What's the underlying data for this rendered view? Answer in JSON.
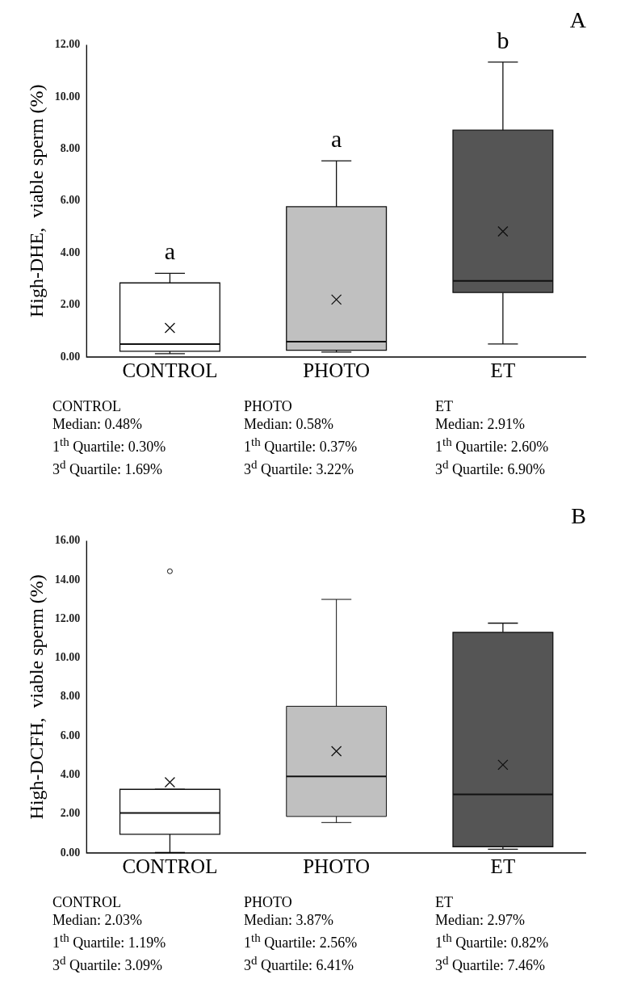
{
  "chart_data": [
    {
      "type": "box",
      "title": "A",
      "ylabel": "High-DHE,  viable sperm (%)",
      "categories": [
        "CONTROL",
        "PHOTO",
        "ET"
      ],
      "colors": [
        "#ffffff",
        "#c0c0c0",
        "#555555"
      ],
      "marker": "cross",
      "boxes": [
        {
          "low": 0.13,
          "q1": 0.22,
          "median": 0.5,
          "q3": 2.85,
          "high": 3.22,
          "mean": 1.12
        },
        {
          "low": 0.19,
          "q1": 0.26,
          "median": 0.59,
          "q3": 5.78,
          "high": 7.54,
          "mean": 2.21
        },
        {
          "low": 0.5,
          "q1": 2.48,
          "median": 2.93,
          "q3": 8.72,
          "high": 11.34,
          "mean": 4.83
        }
      ],
      "ylim": [
        0,
        12
      ],
      "yticks": [
        {
          "value": 0,
          "label": "0.00"
        },
        {
          "value": 2,
          "label": "2.00"
        },
        {
          "value": 4,
          "label": "4.00"
        },
        {
          "value": 6,
          "label": "6.00"
        },
        {
          "value": 8,
          "label": "8.00"
        },
        {
          "value": 10,
          "label": "10.00"
        },
        {
          "value": 12,
          "label": "12.00"
        }
      ],
      "grid": false,
      "annotations": [
        "a",
        "a",
        "b",
        "CONTROL\nMedian: 0.48%\n1$^{th}$ Quartile: 0.30%\n3$^{d}$ Quartile: 1.69%",
        "PHOTO\nMedian: 0.58%\n1$^{th}$ Quartile: 0.37%\n3$^{d}$ Quartile: 3.22%",
        "ET\nMedian: 2.91%\n1$^{th}$ Quartile: 2.60%\n3$^{d}$ Quartile: 6.90%"
      ]
    },
    {
      "type": "box",
      "title": "B",
      "ylabel": "High-DCFH,  viable sperm (%)",
      "categories": [
        "CONTROL",
        "PHOTO",
        "ET"
      ],
      "colors": [
        "#ffffff",
        "#c0c0c0",
        "#555555"
      ],
      "marker": "cross",
      "boxes": [
        {
          "low": 0.02,
          "q1": 0.96,
          "median": 2.05,
          "q3": 3.26,
          "high": 3.26,
          "mean": 3.62,
          "outliers": [
            14.44
          ]
        },
        {
          "low": 1.56,
          "q1": 1.87,
          "median": 3.92,
          "q3": 7.52,
          "high": 13.0,
          "mean": 5.22
        },
        {
          "low": 0.19,
          "q1": 0.32,
          "median": 3.0,
          "q3": 11.31,
          "high": 11.78,
          "mean": 4.52
        }
      ],
      "ylim": [
        0,
        16
      ],
      "yticks": [
        {
          "value": 0,
          "label": "0.00"
        },
        {
          "value": 2,
          "label": "2.00"
        },
        {
          "value": 4,
          "label": "4.00"
        },
        {
          "value": 6,
          "label": "6.00"
        },
        {
          "value": 8,
          "label": "8.00"
        },
        {
          "value": 10,
          "label": "10.00"
        },
        {
          "value": 12,
          "label": "12.00"
        },
        {
          "value": 14,
          "label": "14.00"
        },
        {
          "value": 16,
          "label": "16.00"
        }
      ],
      "grid": false,
      "annotations": [
        "CONTROL\nMedian: 2.03%\n1$^{th}$ Quartile: 1.19%\n3$^{d}$ Quartile: 3.09%",
        "PHOTO\nMedian: 3.87%\n1$^{th}$ Quartile: 2.56%\n3$^{d}$ Quartile: 6.41%",
        "ET\nMedian: 2.97%\n1$^{th}$ Quartile: 0.82%\n3$^{d}$ Quartile: 7.46%"
      ]
    }
  ]
}
